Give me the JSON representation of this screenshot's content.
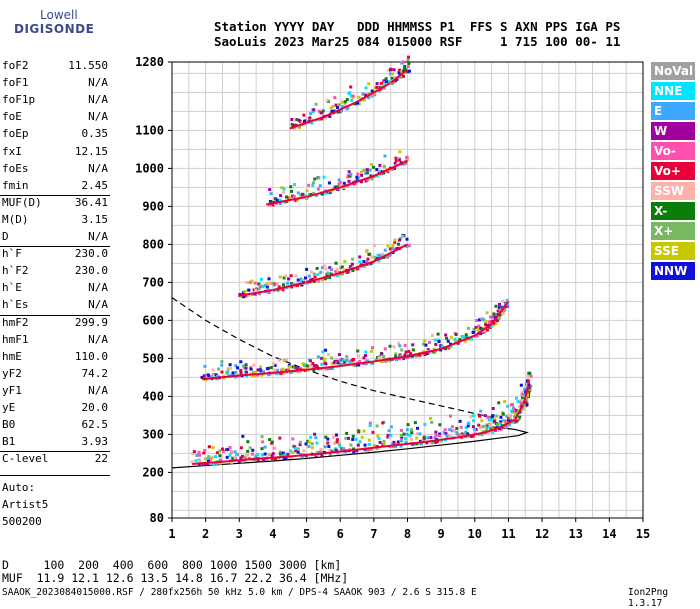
{
  "logo": {
    "line1": "Lowell",
    "line2": "DIGISONDE"
  },
  "header": {
    "line1": "Station YYYY DAY   DDD HHMMSS P1  FFS S AXN PPS IGA PS",
    "line2": "SaoLuis 2023 Mar25 084 015000 RSF     1 715 100 00- 11"
  },
  "params": [
    {
      "label": "foF2",
      "value": "11.550"
    },
    {
      "label": "foF1",
      "value": "N/A"
    },
    {
      "label": "foF1p",
      "value": "N/A"
    },
    {
      "label": "foE",
      "value": "N/A"
    },
    {
      "label": "foEp",
      "value": "0.35"
    },
    {
      "label": "fxI",
      "value": "12.15"
    },
    {
      "label": "foEs",
      "value": "N/A"
    },
    {
      "label": "fmin",
      "value": "2.45"
    },
    {
      "label": "MUF(D)",
      "value": "36.41"
    },
    {
      "label": "M(D)",
      "value": "3.15"
    },
    {
      "label": "D",
      "value": "N/A"
    },
    {
      "label": "h`F",
      "value": "230.0"
    },
    {
      "label": "h`F2",
      "value": "230.0"
    },
    {
      "label": "h`E",
      "value": "N/A"
    },
    {
      "label": "h`Es",
      "value": "N/A"
    },
    {
      "label": "hmF2",
      "value": "299.9"
    },
    {
      "label": "hmF1",
      "value": "N/A"
    },
    {
      "label": "hmE",
      "value": "110.0"
    },
    {
      "label": "yF2",
      "value": "74.2"
    },
    {
      "label": "yF1",
      "value": "N/A"
    },
    {
      "label": "yE",
      "value": "20.0"
    },
    {
      "label": "B0",
      "value": "62.5"
    },
    {
      "label": "B1",
      "value": "3.93"
    },
    {
      "label": "C-level",
      "value": "22"
    }
  ],
  "auto": {
    "line1": "Auto:",
    "line2": "Artist5",
    "line3": "500200"
  },
  "legend": [
    {
      "label": "NoVal",
      "color": "#a0a0a0"
    },
    {
      "label": "NNE",
      "color": "#00e5ff"
    },
    {
      "label": "E",
      "color": "#3ea8ff"
    },
    {
      "label": "W",
      "color": "#a0009e"
    },
    {
      "label": "Vo-",
      "color": "#ff50b0"
    },
    {
      "label": "Vo+",
      "color": "#e8003a"
    },
    {
      "label": "SSW",
      "color": "#ffb0a8"
    },
    {
      "label": "X-",
      "color": "#0a7d0a"
    },
    {
      "label": "X+",
      "color": "#78b860"
    },
    {
      "label": "SSE",
      "color": "#c8c800"
    },
    {
      "label": "NNW",
      "color": "#1010d8"
    }
  ],
  "footer": {
    "line1": "D     100  200  400  600  800 1000 1500 3000 [km]",
    "line2": "MUF  11.9 12.1 12.6 13.5 14.8 16.7 22.2 36.4 [MHz]",
    "line3": "SAAOK_2023084015000.RSF / 280fx256h 50 kHz 5.0 km / DPS-4 SAAOK 903 / 2.6 S 315.8 E",
    "version": "Ion2Png 1.3.17"
  },
  "chart_data": {
    "type": "scatter",
    "xlim": [
      1,
      15
    ],
    "ylim": [
      80,
      1280
    ],
    "xticks": [
      1,
      2,
      3,
      4,
      5,
      6,
      7,
      8,
      9,
      10,
      11,
      12,
      13,
      14,
      15
    ],
    "yticks": [
      80,
      200,
      300,
      400,
      500,
      600,
      700,
      800,
      900,
      1000,
      1100,
      1280
    ],
    "grid": true,
    "traces": [
      {
        "name": "",
        "color": "#e8003a",
        "x": [
          1.6,
          2.5,
          3.5,
          4.5,
          5.5,
          6.5,
          7.5,
          8.5,
          9.5,
          10.3,
          10.8,
          11.2,
          11.45,
          11.6
        ],
        "y": [
          222,
          228,
          236,
          242,
          250,
          260,
          270,
          280,
          292,
          305,
          320,
          340,
          380,
          430
        ]
      },
      {
        "name": "",
        "color": "#e8003a",
        "x": [
          1.9,
          3,
          4,
          5,
          6,
          7,
          8,
          9,
          10,
          10.5,
          11
        ],
        "y": [
          445,
          455,
          462,
          470,
          480,
          492,
          505,
          525,
          560,
          590,
          650
        ]
      },
      {
        "name": "",
        "color": "#e8003a",
        "x": [
          3,
          4,
          5,
          6,
          7,
          8
        ],
        "y": [
          665,
          680,
          700,
          725,
          755,
          800
        ]
      },
      {
        "name": "",
        "color": "#e8003a",
        "x": [
          3.8,
          5,
          6,
          7,
          8
        ],
        "y": [
          905,
          925,
          950,
          980,
          1020
        ]
      },
      {
        "name": "",
        "color": "#e8003a",
        "x": [
          4.5,
          5.5,
          6.5,
          7.5,
          8
        ],
        "y": [
          1105,
          1135,
          1175,
          1225,
          1260
        ]
      }
    ],
    "models": [
      {
        "style": "solid",
        "x": [
          1,
          2,
          3,
          4,
          5,
          6,
          7,
          8,
          9,
          10,
          10.7,
          11.3,
          11.55,
          11.2,
          10.5
        ],
        "y": [
          212,
          218,
          224,
          230,
          237,
          245,
          253,
          262,
          272,
          282,
          290,
          297,
          305,
          313,
          320
        ]
      },
      {
        "style": "dashed",
        "x": [
          1,
          2,
          3,
          4,
          5,
          6,
          7,
          8,
          9,
          10,
          10.5
        ],
        "y": [
          660,
          600,
          550,
          505,
          470,
          440,
          415,
          395,
          375,
          355,
          345
        ]
      }
    ]
  }
}
